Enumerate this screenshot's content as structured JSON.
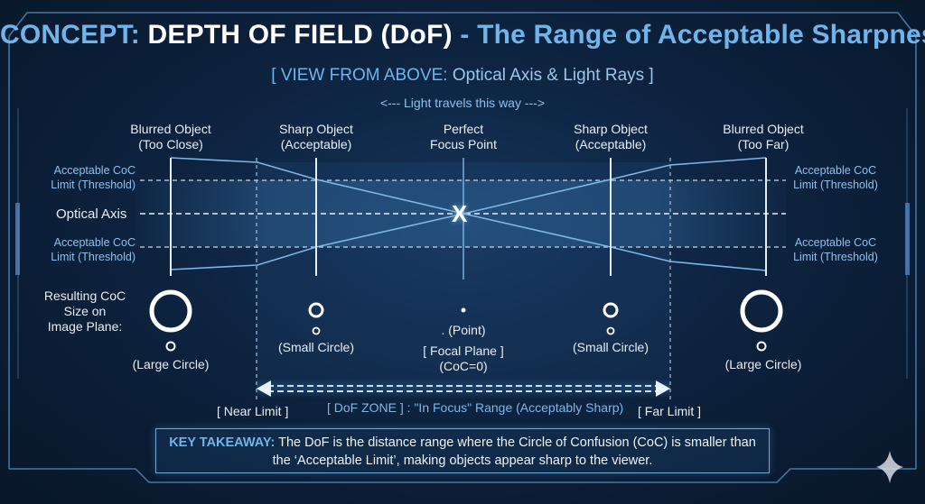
{
  "title": {
    "concept_label": "CONCEPT:",
    "main": "DEPTH OF FIELD (DoF)",
    "dash_subtitle": "- The Range of Acceptable Sharpness"
  },
  "view": {
    "prefix": "[ VIEW FROM ABOVE:",
    "rest": "Optical Axis & Light Rays ]"
  },
  "light_direction": "<--- Light travels this way --->",
  "columns": [
    {
      "line1": "Blurred Object",
      "line2": "(Too Close)"
    },
    {
      "line1": "Sharp Object",
      "line2": "(Acceptable)"
    },
    {
      "line1": "Perfect",
      "line2": "Focus Point"
    },
    {
      "line1": "Sharp Object",
      "line2": "(Acceptable)"
    },
    {
      "line1": "Blurred Object",
      "line2": "(Too Far)"
    }
  ],
  "side_labels": {
    "coc_limit_line1": "Acceptable CoC",
    "coc_limit_line2": "Limit (Threshold)",
    "optical_axis": "Optical Axis"
  },
  "focus_marker": "X",
  "resulting_coc": {
    "line1": "Resulting CoC",
    "line2": "Size on",
    "line3": "Image Plane:"
  },
  "coc_results": {
    "large_left": "(Large Circle)",
    "small_left": "(Small Circle)",
    "point": ". (Point)",
    "focal_plane_line1": "[ Focal Plane ]",
    "focal_plane_line2": "(CoC=0)",
    "small_right": "(Small Circle)",
    "large_right": "(Large Circle)"
  },
  "limits": {
    "near": "[ Near Limit ]",
    "far": "[ Far Limit ]",
    "dof_zone": "[ DoF ZONE ] : \"In Focus\" Range (Acceptably Sharp)"
  },
  "takeaway": {
    "label": "KEY TAKEAWAY:",
    "text": "The DoF is the distance range where the Circle of Confusion (CoC) is smaller than the ‘Acceptable Limit’, making objects appear sharp to the viewer."
  },
  "colors": {
    "accent": "#6fb4ea",
    "ray": "#7fb6e6",
    "background": "#0d2340"
  }
}
